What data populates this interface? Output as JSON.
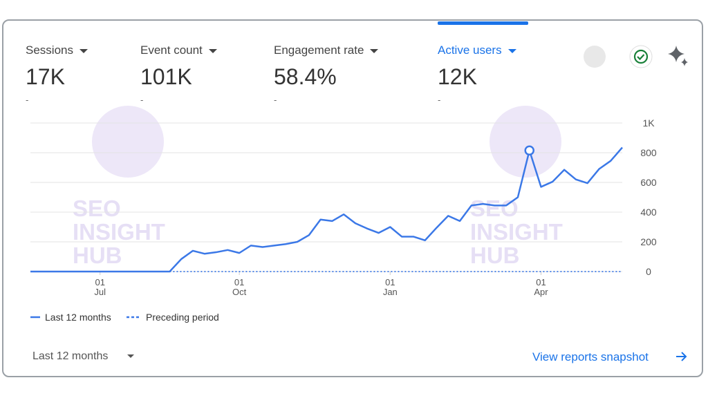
{
  "metrics": [
    {
      "label": "Sessions",
      "value": "17K",
      "change": "-"
    },
    {
      "label": "Event count",
      "value": "101K",
      "change": "-"
    },
    {
      "label": "Engagement rate",
      "value": "58.4%",
      "change": "-"
    },
    {
      "label": "Active users",
      "value": "12K",
      "change": "-",
      "active": true
    }
  ],
  "watermark": [
    "SEO",
    "INSIGHT",
    "HUB"
  ],
  "chart_data": {
    "type": "line",
    "categories": [
      null,
      null,
      null,
      null,
      null,
      null,
      "01 Jul",
      null,
      null,
      null,
      null,
      null,
      null,
      null,
      null,
      null,
      null,
      null,
      "01 Oct",
      null,
      null,
      null,
      null,
      null,
      null,
      null,
      null,
      null,
      null,
      null,
      null,
      "01 Jan",
      null,
      null,
      null,
      null,
      null,
      null,
      null,
      null,
      null,
      null,
      null,
      null,
      "01 Apr",
      null,
      null,
      null,
      null,
      null,
      null,
      null
    ],
    "series": [
      {
        "name": "Last 12 months",
        "color": "#3b78e7",
        "dashed": false,
        "values": [
          0,
          0,
          0,
          0,
          0,
          0,
          0,
          0,
          0,
          0,
          0,
          0,
          0,
          84,
          140,
          120,
          130,
          145,
          125,
          175,
          165,
          175,
          185,
          200,
          245,
          350,
          340,
          385,
          325,
          290,
          260,
          300,
          235,
          235,
          210,
          295,
          375,
          340,
          445,
          455,
          445,
          445,
          500,
          815,
          570,
          605,
          685,
          620,
          595,
          690,
          745,
          835
        ]
      },
      {
        "name": "Preceding period",
        "color": "#3b78e7",
        "dashed": true,
        "values": [
          null,
          null,
          null,
          null,
          null,
          null,
          null,
          null,
          null,
          null,
          null,
          null,
          0,
          0,
          0,
          0,
          0,
          0,
          0,
          0,
          0,
          0,
          0,
          0,
          0,
          0,
          0,
          0,
          0,
          0,
          0,
          0,
          0,
          0,
          0,
          0,
          0,
          0,
          0,
          0,
          0,
          0,
          0,
          0,
          0,
          0,
          0,
          0,
          0,
          0,
          0,
          0
        ]
      }
    ],
    "highlighted_point": 43,
    "ylim": [
      0,
      1000
    ],
    "yticks": [
      0,
      200,
      400,
      600,
      800,
      {
        "value": 1000,
        "label": "1K"
      }
    ],
    "grid": true
  },
  "date_range": "Last 12 months",
  "link": "View reports snapshot"
}
